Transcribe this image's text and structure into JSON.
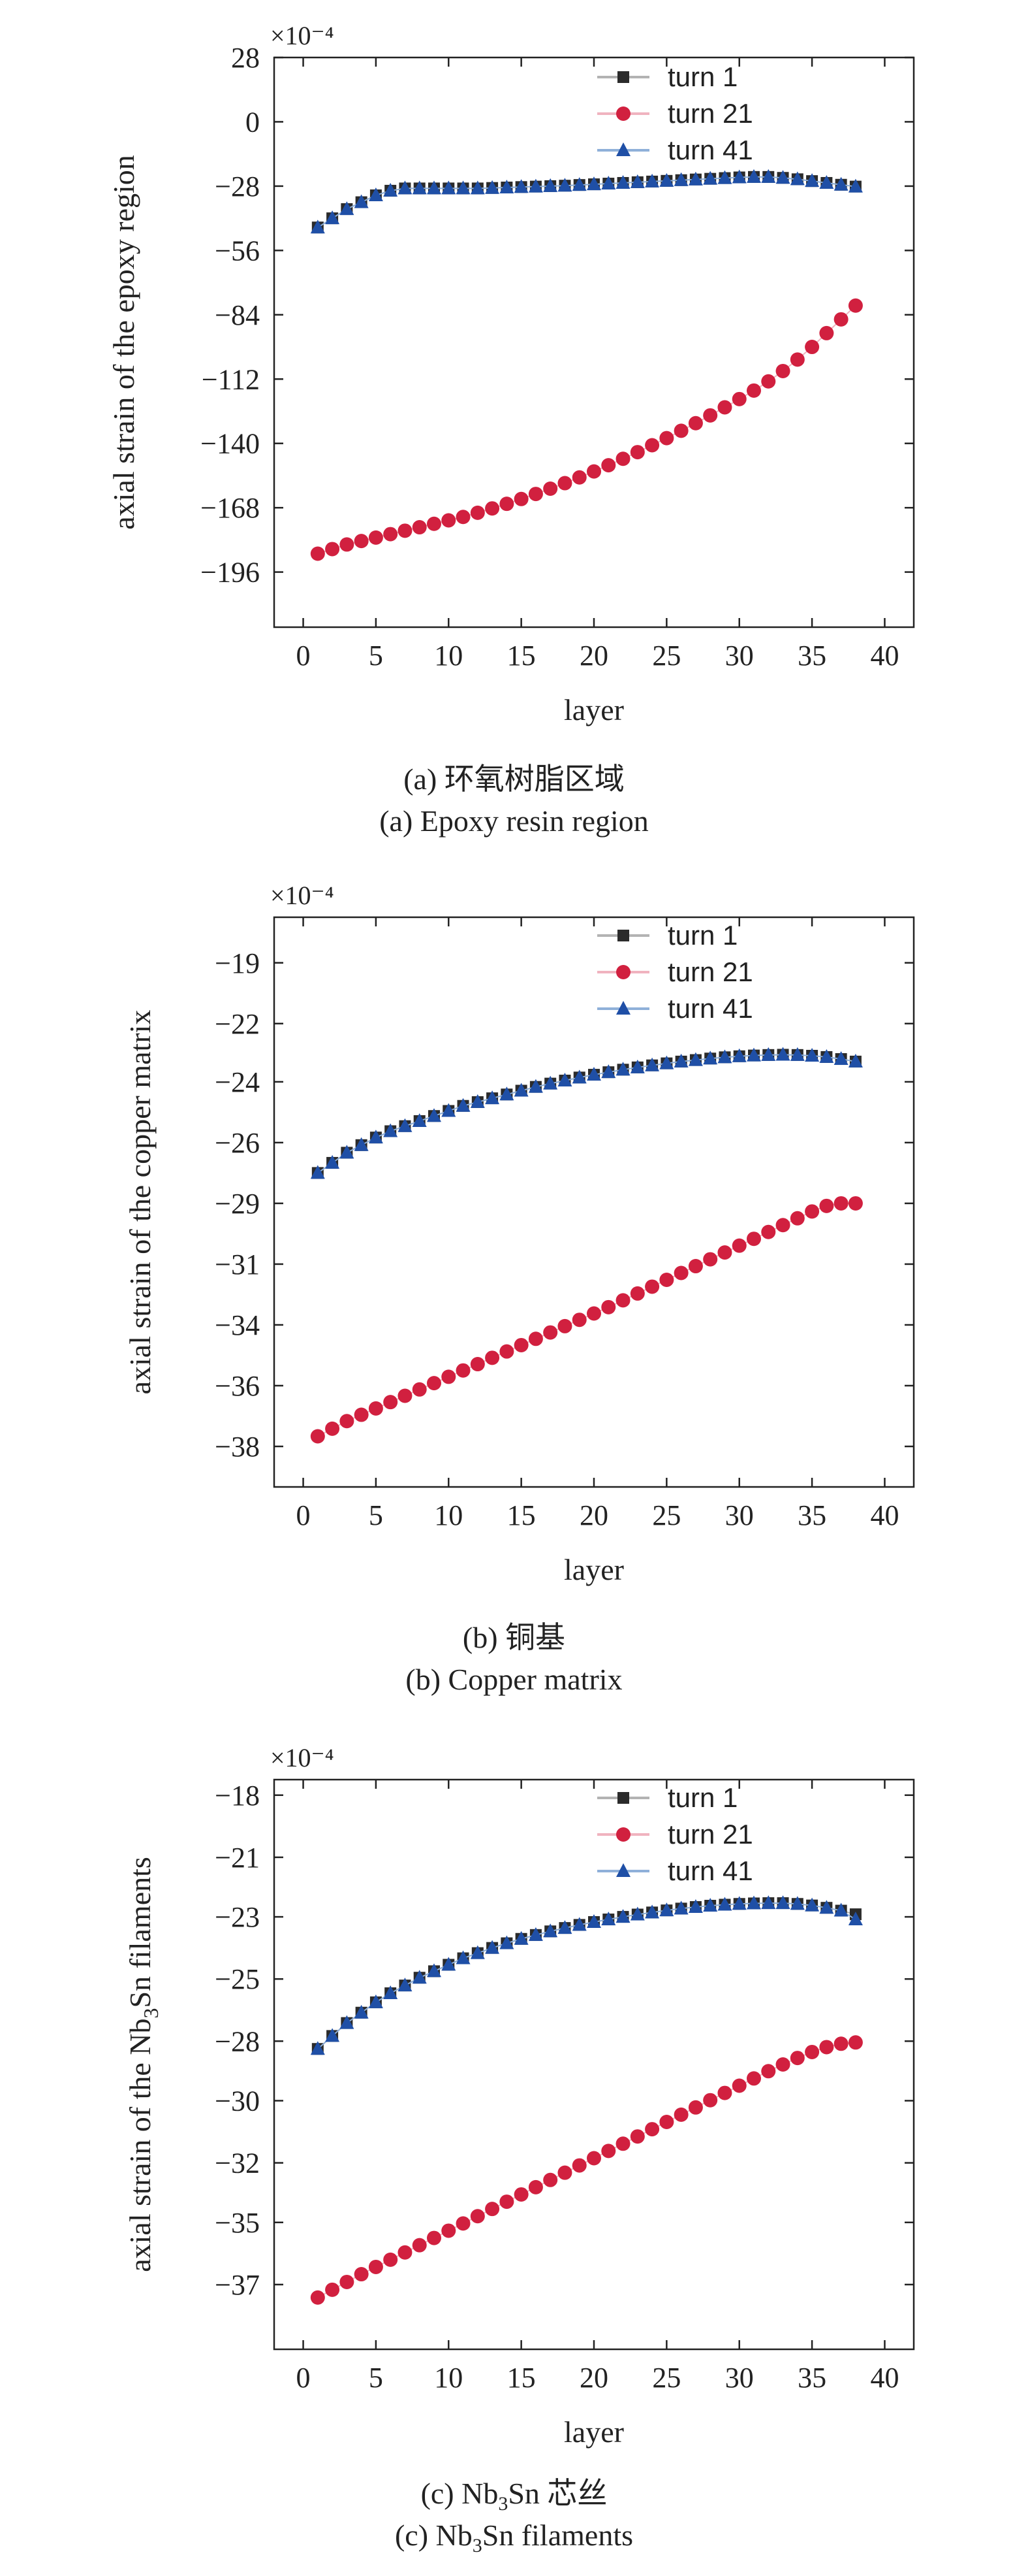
{
  "chart_data": [
    {
      "type": "scatter",
      "panel": "a",
      "title": "",
      "multiplier": "×10⁻⁴",
      "xlabel": "layer",
      "ylabel": "axial strain of the epoxy region",
      "xlim": [
        -2,
        42
      ],
      "ylim": [
        -220,
        28
      ],
      "xticks": [
        0,
        5,
        10,
        15,
        20,
        25,
        30,
        35,
        40
      ],
      "yticks": [
        28,
        0,
        -28,
        -56,
        -84,
        -112,
        -140,
        -168,
        -196
      ],
      "ytick_labels": [
        "28",
        "0",
        "−28",
        "−56",
        "−84",
        "−112",
        "−140",
        "−168",
        "−196"
      ],
      "legend_position": "top-right",
      "caption_cn": "(a) 环氧树脂区域",
      "caption_en": "(a) Epoxy resin region",
      "x": [
        1,
        2,
        3,
        4,
        5,
        6,
        7,
        8,
        9,
        10,
        11,
        12,
        13,
        14,
        15,
        16,
        17,
        18,
        19,
        20,
        21,
        22,
        23,
        24,
        25,
        26,
        27,
        28,
        29,
        30,
        31,
        32,
        33,
        34,
        35,
        36,
        37,
        38
      ],
      "series": [
        {
          "name": "turn 1",
          "color": "#2b2b2b",
          "marker": "square",
          "values": [
            -46,
            -42,
            -38,
            -35,
            -32,
            -30,
            -29,
            -29,
            -29,
            -29,
            -29,
            -29,
            -28.8,
            -28.6,
            -28.4,
            -28.2,
            -28,
            -27.8,
            -27.5,
            -27.2,
            -26.9,
            -26.6,
            -26.3,
            -26,
            -25.7,
            -25.4,
            -25.1,
            -24.8,
            -24.5,
            -24.2,
            -24,
            -24,
            -24.4,
            -25,
            -25.8,
            -26.6,
            -27.4,
            -28.2
          ],
          "legend_line": "#b3b3b3"
        },
        {
          "name": "turn 21",
          "color": "#d1203f",
          "marker": "circle",
          "values": [
            -188,
            -186,
            -184,
            -182.5,
            -181,
            -179.5,
            -178,
            -176.5,
            -175,
            -173.5,
            -172,
            -170.2,
            -168.3,
            -166.3,
            -164.2,
            -162,
            -159.7,
            -157.3,
            -154.8,
            -152.2,
            -149.5,
            -146.7,
            -143.8,
            -140.8,
            -137.7,
            -134.5,
            -131.2,
            -127.8,
            -124.3,
            -120.7,
            -117,
            -113,
            -108.5,
            -103.5,
            -98,
            -92,
            -86,
            -80
          ],
          "legend_line": "#f0b3bf"
        },
        {
          "name": "turn 41",
          "color": "#1f4fa6",
          "marker": "triangle",
          "values": [
            -46,
            -42,
            -38,
            -35,
            -32,
            -30,
            -29,
            -29,
            -29,
            -29,
            -29,
            -29,
            -28.8,
            -28.6,
            -28.4,
            -28.2,
            -28,
            -27.8,
            -27.5,
            -27.2,
            -26.9,
            -26.6,
            -26.3,
            -26,
            -25.7,
            -25.4,
            -25.1,
            -24.8,
            -24.5,
            -24.2,
            -24,
            -24,
            -24.4,
            -25,
            -25.8,
            -26.6,
            -27.4,
            -28.2
          ],
          "legend_line": "#8fb0d9"
        }
      ]
    },
    {
      "type": "scatter",
      "panel": "b",
      "title": "",
      "multiplier": "×10⁻⁴",
      "xlabel": "layer",
      "ylabel": "axial strain of the copper matrix",
      "xlim": [
        -2,
        42
      ],
      "ylim": [
        -40,
        -17.5
      ],
      "xticks": [
        0,
        5,
        10,
        15,
        20,
        25,
        30,
        35,
        40
      ],
      "yticks": [
        -19,
        -22,
        -24,
        -26,
        -29,
        -31,
        -34,
        -36,
        -38
      ],
      "ytick_labels": [
        "−19",
        "−22",
        "−24",
        "−26",
        "−29",
        "−31",
        "−34",
        "−36",
        "−38"
      ],
      "ytick_positions": [
        -19.3,
        -21.7,
        -24.0,
        -26.4,
        -28.8,
        -31.2,
        -33.6,
        -36.0,
        -38.4
      ],
      "legend_position": "top-right",
      "caption_cn": "(b) 铜基",
      "caption_en": "(b) Copper matrix",
      "x": [
        1,
        2,
        3,
        4,
        5,
        6,
        7,
        8,
        9,
        10,
        11,
        12,
        13,
        14,
        15,
        16,
        17,
        18,
        19,
        20,
        21,
        22,
        23,
        24,
        25,
        26,
        27,
        28,
        29,
        30,
        31,
        32,
        33,
        34,
        35,
        36,
        37,
        38
      ],
      "series": [
        {
          "name": "turn 1",
          "color": "#2b2b2b",
          "marker": "square",
          "values": [
            -27.6,
            -27.2,
            -26.8,
            -26.5,
            -26.2,
            -25.95,
            -25.75,
            -25.55,
            -25.35,
            -25.15,
            -24.95,
            -24.8,
            -24.65,
            -24.5,
            -24.35,
            -24.2,
            -24.07,
            -23.95,
            -23.83,
            -23.72,
            -23.62,
            -23.52,
            -23.43,
            -23.35,
            -23.27,
            -23.2,
            -23.14,
            -23.08,
            -23.03,
            -22.99,
            -22.96,
            -22.94,
            -22.93,
            -22.94,
            -22.97,
            -23.02,
            -23.1,
            -23.2
          ],
          "legend_line": "#b3b3b3"
        },
        {
          "name": "turn 21",
          "color": "#d1203f",
          "marker": "circle",
          "values": [
            -38.0,
            -37.7,
            -37.4,
            -37.15,
            -36.9,
            -36.65,
            -36.4,
            -36.15,
            -35.9,
            -35.65,
            -35.4,
            -35.15,
            -34.9,
            -34.65,
            -34.4,
            -34.15,
            -33.9,
            -33.65,
            -33.4,
            -33.15,
            -32.9,
            -32.63,
            -32.36,
            -32.09,
            -31.82,
            -31.55,
            -31.28,
            -31.01,
            -30.74,
            -30.47,
            -30.2,
            -29.93,
            -29.66,
            -29.39,
            -29.12,
            -28.9,
            -28.8,
            -28.8
          ],
          "legend_line": "#f0b3bf"
        },
        {
          "name": "turn 41",
          "color": "#1f4fa6",
          "marker": "triangle",
          "values": [
            -27.6,
            -27.2,
            -26.8,
            -26.5,
            -26.2,
            -25.95,
            -25.75,
            -25.55,
            -25.35,
            -25.15,
            -24.95,
            -24.8,
            -24.65,
            -24.5,
            -24.35,
            -24.2,
            -24.07,
            -23.95,
            -23.83,
            -23.72,
            -23.62,
            -23.52,
            -23.43,
            -23.35,
            -23.27,
            -23.2,
            -23.14,
            -23.08,
            -23.03,
            -22.99,
            -22.96,
            -22.94,
            -22.93,
            -22.94,
            -22.97,
            -23.02,
            -23.1,
            -23.2
          ],
          "legend_line": "#8fb0d9"
        }
      ]
    },
    {
      "type": "scatter",
      "panel": "c",
      "title": "",
      "multiplier": "×10⁻⁴",
      "xlabel": "layer",
      "ylabel_pre": "axial strain of the Nb",
      "ylabel_sub": "3",
      "ylabel_post": "Sn filaments",
      "xlim": [
        -2,
        42
      ],
      "ylim": [
        -39.5,
        -17.5
      ],
      "xticks": [
        0,
        5,
        10,
        15,
        20,
        25,
        30,
        35,
        40
      ],
      "yticks": [
        -18,
        -21,
        -23,
        -25,
        -28,
        -30,
        -32,
        -35,
        -37
      ],
      "ytick_labels": [
        "−18",
        "−21",
        "−23",
        "−25",
        "−28",
        "−30",
        "−32",
        "−35",
        "−37"
      ],
      "ytick_positions": [
        -18.1,
        -20.5,
        -22.8,
        -25.2,
        -27.6,
        -29.9,
        -32.3,
        -34.6,
        -37.0
      ],
      "legend_position": "top-right",
      "caption_cn_pre": "(c) Nb",
      "caption_cn_sub": "3",
      "caption_cn_post": "Sn 芯丝",
      "caption_en_pre": "(c) Nb",
      "caption_en_sub": "3",
      "caption_en_post": "Sn filaments",
      "x": [
        1,
        2,
        3,
        4,
        5,
        6,
        7,
        8,
        9,
        10,
        11,
        12,
        13,
        14,
        15,
        16,
        17,
        18,
        19,
        20,
        21,
        22,
        23,
        24,
        25,
        26,
        27,
        28,
        29,
        30,
        31,
        32,
        33,
        34,
        35,
        36,
        37,
        38
      ],
      "series": [
        {
          "name": "turn 1",
          "color": "#2b2b2b",
          "marker": "square",
          "values": [
            -27.9,
            -27.4,
            -26.9,
            -26.5,
            -26.1,
            -25.75,
            -25.45,
            -25.15,
            -24.9,
            -24.65,
            -24.4,
            -24.2,
            -24.0,
            -23.82,
            -23.65,
            -23.5,
            -23.36,
            -23.23,
            -23.11,
            -23.0,
            -22.9,
            -22.8,
            -22.71,
            -22.63,
            -22.55,
            -22.48,
            -22.42,
            -22.37,
            -22.33,
            -22.3,
            -22.28,
            -22.27,
            -22.27,
            -22.3,
            -22.36,
            -22.45,
            -22.56,
            -22.7
          ],
          "legend_line": "#b3b3b3"
        },
        {
          "name": "turn 21",
          "color": "#d1203f",
          "marker": "circle",
          "values": [
            -37.5,
            -37.2,
            -36.9,
            -36.6,
            -36.32,
            -36.04,
            -35.76,
            -35.48,
            -35.2,
            -34.92,
            -34.64,
            -34.36,
            -34.08,
            -33.8,
            -33.52,
            -33.24,
            -32.96,
            -32.68,
            -32.4,
            -32.12,
            -31.84,
            -31.56,
            -31.28,
            -31.0,
            -30.72,
            -30.44,
            -30.16,
            -29.88,
            -29.6,
            -29.32,
            -29.04,
            -28.76,
            -28.5,
            -28.25,
            -28.02,
            -27.83,
            -27.7,
            -27.65
          ],
          "legend_line": "#f0b3bf"
        },
        {
          "name": "turn 41",
          "color": "#1f4fa6",
          "marker": "triangle",
          "values": [
            -27.9,
            -27.4,
            -26.9,
            -26.5,
            -26.1,
            -25.75,
            -25.45,
            -25.15,
            -24.9,
            -24.65,
            -24.4,
            -24.2,
            -24.0,
            -23.82,
            -23.65,
            -23.5,
            -23.36,
            -23.23,
            -23.11,
            -23.0,
            -22.9,
            -22.8,
            -22.71,
            -22.63,
            -22.55,
            -22.48,
            -22.42,
            -22.37,
            -22.33,
            -22.3,
            -22.28,
            -22.27,
            -22.27,
            -22.3,
            -22.36,
            -22.45,
            -22.56,
            -22.9
          ],
          "legend_line": "#8fb0d9"
        }
      ]
    }
  ]
}
